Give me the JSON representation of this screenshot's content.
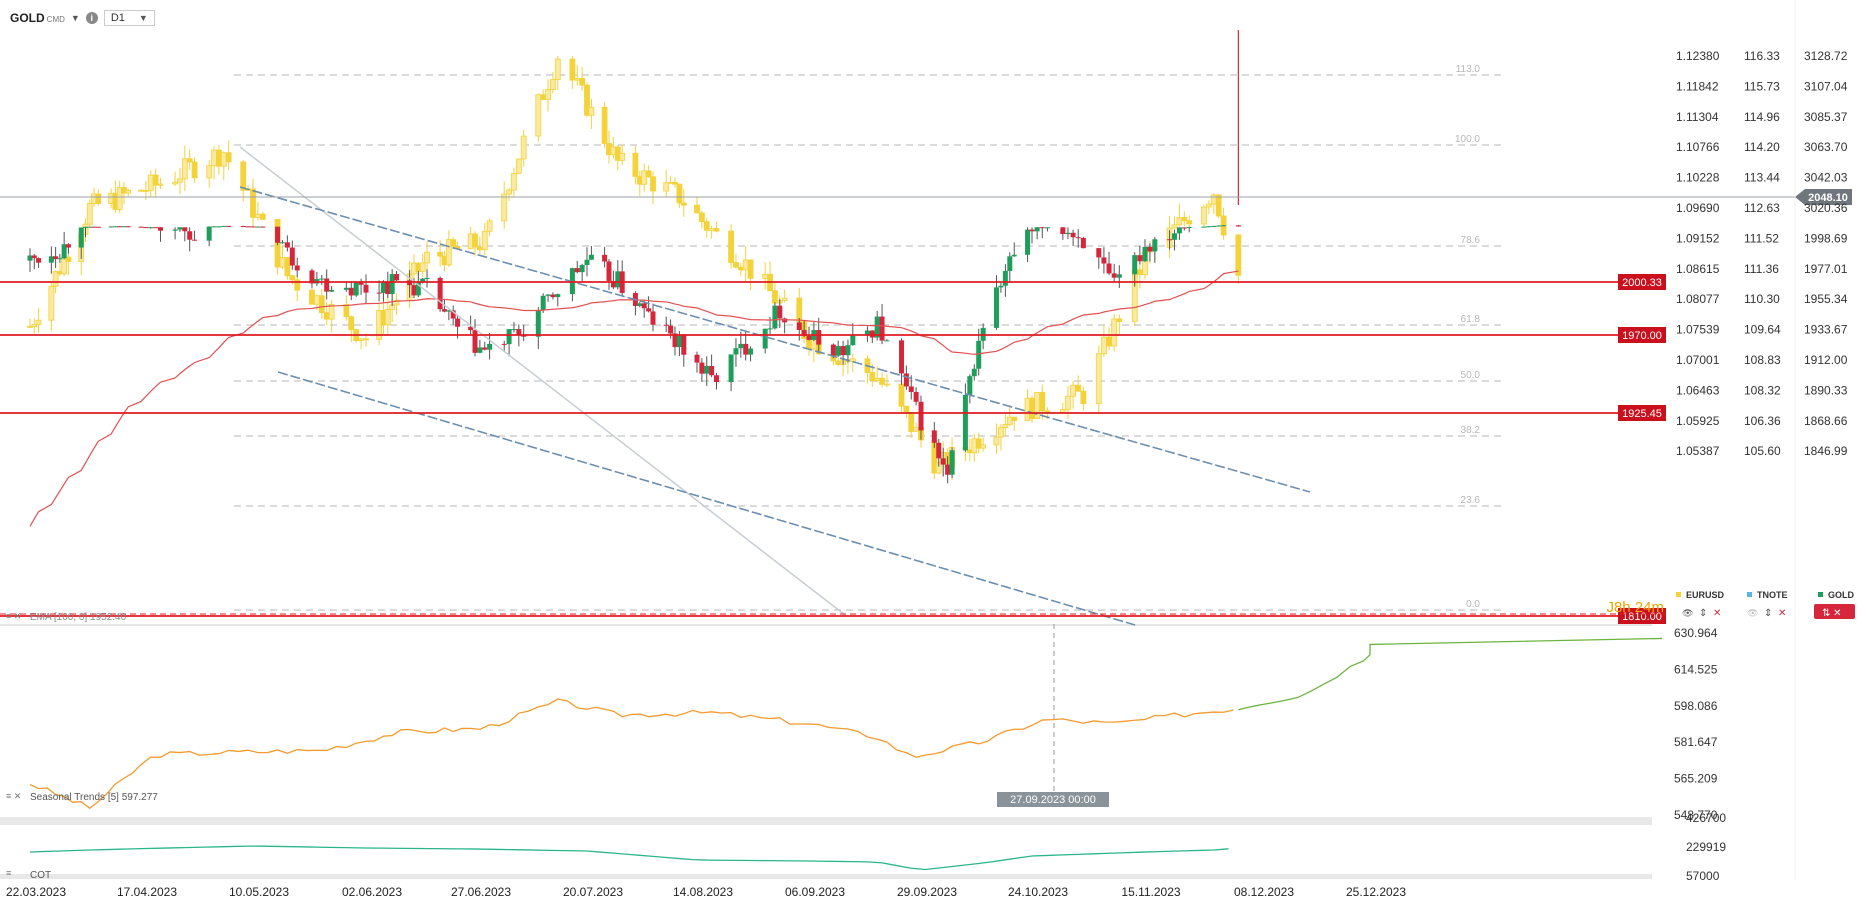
{
  "toolbar": {
    "symbol": "GOLD",
    "symbol_sub": "CMD",
    "timeframe": "D1"
  },
  "price_axis": {
    "gold": [
      "3128.72",
      "3107.04",
      "3085.37",
      "3063.70",
      "3042.03",
      "3020.36",
      "1998.69",
      "1977.01",
      "1955.34",
      "1933.67",
      "1912.00",
      "1890.33",
      "1868.66",
      "1846.99"
    ],
    "eurusd": [
      "1.12380",
      "1.11842",
      "1.11304",
      "1.10766",
      "1.10228",
      "1.09690",
      "1.09152",
      "1.08615",
      "1.08077",
      "1.07539",
      "1.07001",
      "1.06463",
      "1.05925",
      "1.05387"
    ],
    "tnote": [
      "116.33",
      "115.73",
      "114.96",
      "114.20",
      "113.44",
      "112.63",
      "111.52",
      "111.36",
      "110.30",
      "109.64",
      "108.83",
      "108.32",
      "106.36",
      "105.60"
    ]
  },
  "fib_levels": [
    "113.0",
    "100.0",
    "78.6",
    "61.8",
    "50.0",
    "38.2",
    "23.6",
    "0.0"
  ],
  "horizontal_levels": {
    "current": "2048.10",
    "levels": [
      "2000.33",
      "1970.00",
      "1925.45",
      "1810.00"
    ]
  },
  "timer": "J8h 24m",
  "legend": [
    "EURUSD",
    "TNOTE",
    "GOLD"
  ],
  "indicators": {
    "ema": "EMA [100, 0] 1952.40",
    "seasonal": "Seasonal Trends [5] 597.277",
    "cot": "COT"
  },
  "seasonal_axis": [
    "630.964",
    "614.525",
    "598.086",
    "581.647",
    "565.209",
    "548.770"
  ],
  "cot_axis": [
    "426700",
    "229919",
    "57000"
  ],
  "crosshair_date": "27.09.2023 00:00",
  "colors": {
    "up": "#1e9e5a",
    "down": "#d6263c",
    "eurusd_candle": "#f3d23a",
    "level_red": "#e01b22",
    "ema": "#e45050",
    "seasonal": "#f59a2e",
    "seasonal_projection": "#6db33f",
    "cot": "#2ab58a",
    "trend_channel": "#6c8fb0"
  },
  "chart_data": {
    "type": "candlestick",
    "title": "GOLD",
    "timeframe": "D1",
    "x_tick_labels": [
      "22.03.2023",
      "17.04.2023",
      "10.05.2023",
      "02.06.2023",
      "27.06.2023",
      "20.07.2023",
      "14.08.2023",
      "06.09.2023",
      "29.09.2023",
      "24.10.2023",
      "15.11.2023",
      "08.12.2023",
      "25.12.2023"
    ],
    "y_range": [
      1830,
      3135
    ],
    "series": [
      {
        "name": "GOLD",
        "type": "candlestick",
        "close_path": [
          [
            "22.03.2023",
            1975
          ],
          [
            "30.03.2023",
            1985
          ],
          [
            "05.04.2023",
            2015
          ],
          [
            "13.04.2023",
            2035
          ],
          [
            "20.04.2023",
            2000
          ],
          [
            "28.04.2023",
            1995
          ],
          [
            "04.05.2023",
            2045
          ],
          [
            "10.05.2023",
            2030
          ],
          [
            "17.05.2023",
            1980
          ],
          [
            "24.05.2023",
            1960
          ],
          [
            "02.06.2023",
            1955
          ],
          [
            "09.06.2023",
            1960
          ],
          [
            "16.06.2023",
            1955
          ],
          [
            "23.06.2023",
            1925
          ],
          [
            "29.06.2023",
            1910
          ],
          [
            "07.07.2023",
            1925
          ],
          [
            "14.07.2023",
            1955
          ],
          [
            "20.07.2023",
            1975
          ],
          [
            "27.07.2023",
            1960
          ],
          [
            "03.08.2023",
            1935
          ],
          [
            "10.08.2023",
            1915
          ],
          [
            "17.08.2023",
            1890
          ],
          [
            "24.08.2023",
            1915
          ],
          [
            "31.08.2023",
            1940
          ],
          [
            "06.09.2023",
            1920
          ],
          [
            "13.09.2023",
            1910
          ],
          [
            "20.09.2023",
            1930
          ],
          [
            "27.09.2023",
            1875
          ],
          [
            "05.10.2023",
            1820
          ],
          [
            "13.10.2023",
            1930
          ],
          [
            "20.10.2023",
            1980
          ],
          [
            "27.10.2023",
            2005
          ],
          [
            "03.11.2023",
            1990
          ],
          [
            "09.11.2023",
            1955
          ],
          [
            "15.11.2023",
            1985
          ],
          [
            "22.11.2023",
            2000
          ],
          [
            "29.11.2023",
            2045
          ],
          [
            "01.12.2023",
            2072
          ],
          [
            "04.12.2023",
            2030
          ]
        ]
      },
      {
        "name": "EURUSD",
        "type": "candlestick",
        "close_path": [
          [
            "22.03.2023",
            1.074
          ],
          [
            "05.04.2023",
            1.095
          ],
          [
            "20.04.2023",
            1.099
          ],
          [
            "04.05.2023",
            1.105
          ],
          [
            "17.05.2023",
            1.083
          ],
          [
            "02.06.2023",
            1.072
          ],
          [
            "16.06.2023",
            1.086
          ],
          [
            "29.06.2023",
            1.089
          ],
          [
            "14.07.2023",
            1.122
          ],
          [
            "27.07.2023",
            1.103
          ],
          [
            "10.08.2023",
            1.097
          ],
          [
            "24.08.2023",
            1.085
          ],
          [
            "06.09.2023",
            1.072
          ],
          [
            "20.09.2023",
            1.065
          ],
          [
            "03.10.2023",
            1.049
          ],
          [
            "20.10.2023",
            1.059
          ],
          [
            "03.11.2023",
            1.062
          ],
          [
            "15.11.2023",
            1.086
          ],
          [
            "29.11.2023",
            1.098
          ],
          [
            "04.12.2023",
            1.083
          ]
        ]
      }
    ],
    "ema_100": {
      "name": "EMA [100, 0]",
      "last": 1952.4
    },
    "seasonal_trends": {
      "name": "Seasonal Trends [5]",
      "last": 597.277,
      "y_range": [
        548.77,
        630.964
      ]
    },
    "cot": {
      "name": "COT",
      "y_range": [
        57000,
        426700
      ]
    },
    "grid": false
  }
}
